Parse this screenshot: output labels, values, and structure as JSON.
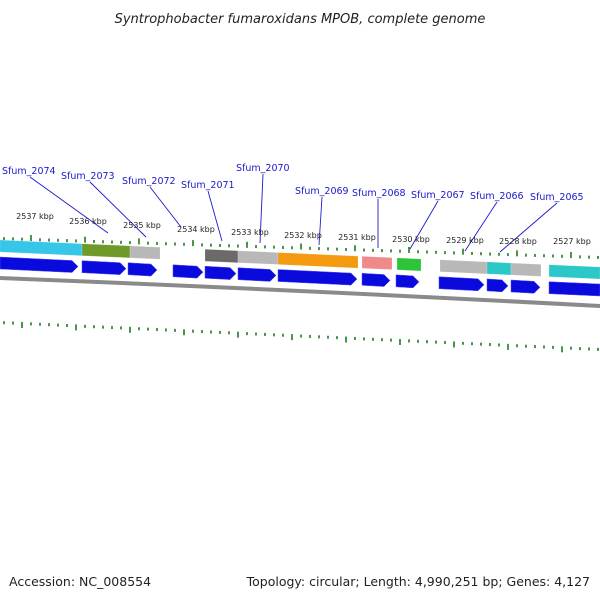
{
  "title": "Syntrophobacter fumaroxidans MPOB, complete genome",
  "footer": {
    "accession": "Accession: NC_008554",
    "summary": "Topology: circular; Length: 4,990,251 bp; Genes: 4,127"
  },
  "scale_labels": [
    "2537 kbp",
    "2536 kbp",
    "2535 kbp",
    "2534 kbp",
    "2533 kbp",
    "2532 kbp",
    "2531 kbp",
    "2530 kbp",
    "2529 kbp",
    "2528 kbp",
    "2527 kbp"
  ],
  "gene_labels": [
    "Sfum_2074",
    "Sfum_2073",
    "Sfum_2072",
    "Sfum_2071",
    "Sfum_2070",
    "Sfum_2069",
    "Sfum_2068",
    "Sfum_2067",
    "Sfum_2066",
    "Sfum_2065"
  ],
  "colors": {
    "cds_arrow": "#0a0adc",
    "backbone": "#8a8a8a",
    "tick": "#1e7a1e",
    "label": "#1a1acc",
    "cog_cyan": "#36c6e8",
    "cog_olive": "#6f9a2a",
    "cog_gray": "#b8b8b8",
    "cog_dark_gray": "#6a6a6a",
    "cog_orange": "#f39a10",
    "cog_pink": "#ef8a8a",
    "cog_green": "#2ec43a",
    "cog_teal": "#2cc8c8"
  }
}
